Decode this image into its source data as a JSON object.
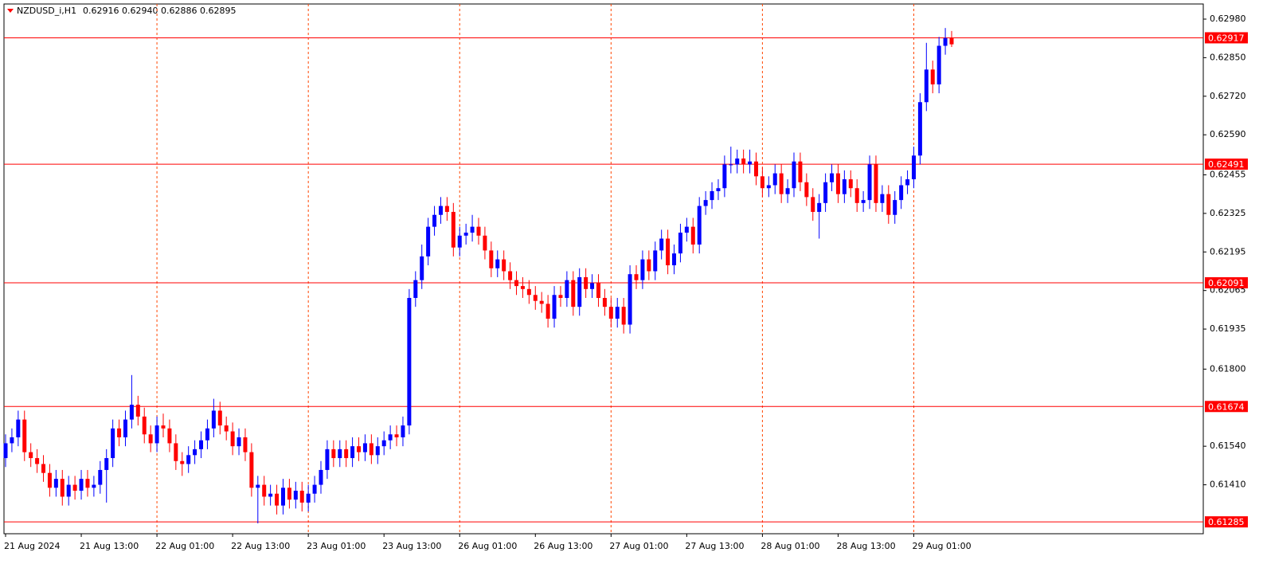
{
  "chart_data": {
    "type": "candlestick",
    "header": {
      "symbol": "NZDUSD_i,H1",
      "quote": "0.62916 0.62940 0.62886 0.62895"
    },
    "up_color": "#0000ff",
    "down_color": "#ff0000",
    "grid_color": "#ff4500",
    "level_color": "#ff0000",
    "grid": true,
    "ylim": [
      0.61245,
      0.63031
    ],
    "yticks": [
      {
        "value": 0.6298,
        "label": "0.62980"
      },
      {
        "value": 0.6285,
        "label": "0.62850"
      },
      {
        "value": 0.6272,
        "label": "0.62720"
      },
      {
        "value": 0.6259,
        "label": "0.62590"
      },
      0.62455,
      0.62325,
      0.62195,
      0.62065,
      0.61935,
      {
        "value": 0.618,
        "label": "0.61800"
      },
      {
        "value": 0.6154,
        "label": "0.61540"
      },
      {
        "value": 0.6141,
        "label": "0.61410"
      }
    ],
    "levels": [
      0.62917,
      0.62491,
      0.62091,
      0.61674,
      0.61285
    ],
    "xticks": [
      {
        "value": 0,
        "label": "21 Aug 2024"
      },
      {
        "value": 12,
        "label": "21 Aug 13:00"
      },
      {
        "value": 24,
        "label": "22 Aug 01:00"
      },
      {
        "value": 36,
        "label": "22 Aug 13:00"
      },
      {
        "value": 48,
        "label": "23 Aug 01:00"
      },
      {
        "value": 60,
        "label": "23 Aug 13:00"
      },
      {
        "value": 72,
        "label": "26 Aug 01:00"
      },
      {
        "value": 84,
        "label": "26 Aug 13:00"
      },
      {
        "value": 96,
        "label": "27 Aug 01:00"
      },
      {
        "value": 108,
        "label": "27 Aug 13:00"
      },
      {
        "value": 120,
        "label": "28 Aug 01:00"
      },
      {
        "value": 132,
        "label": "28 Aug 13:00"
      },
      {
        "value": 144,
        "label": "29 Aug 01:00"
      }
    ],
    "open": [
      0.615,
      0.6155,
      0.6157,
      0.6163,
      0.6152,
      0.615,
      0.6148,
      0.6145,
      0.614,
      0.6143,
      0.6137,
      0.6141,
      0.6139,
      0.6143,
      0.614,
      0.6141,
      0.6146,
      0.615,
      0.616,
      0.6157,
      0.6163,
      0.6168,
      0.6164,
      0.6158,
      0.6155,
      0.6161,
      0.616,
      0.6155,
      0.6149,
      0.6148,
      0.6151,
      0.6153,
      0.6156,
      0.616,
      0.6166,
      0.6161,
      0.6159,
      0.6154,
      0.6157,
      0.6152,
      0.614,
      0.6141,
      0.6137,
      0.6138,
      0.6134,
      0.614,
      0.6136,
      0.6139,
      0.6135,
      0.6138,
      0.6141,
      0.6146,
      0.6153,
      0.615,
      0.6153,
      0.615,
      0.6154,
      0.6152,
      0.6155,
      0.6151,
      0.6154,
      0.6156,
      0.6158,
      0.6157,
      0.6161,
      0.6204,
      0.621,
      0.6218,
      0.6228,
      0.6232,
      0.6235,
      0.6233,
      0.6221,
      0.6225,
      0.6226,
      0.6228,
      0.6225,
      0.622,
      0.6214,
      0.6217,
      0.6213,
      0.621,
      0.6208,
      0.6207,
      0.6205,
      0.6203,
      0.6202,
      0.6197,
      0.6205,
      0.6204,
      0.621,
      0.6201,
      0.6211,
      0.6207,
      0.6209,
      0.6204,
      0.6201,
      0.6197,
      0.6201,
      0.6195,
      0.6212,
      0.621,
      0.6217,
      0.6213,
      0.622,
      0.6224,
      0.6215,
      0.6219,
      0.6226,
      0.6228,
      0.6222,
      0.6235,
      0.6237,
      0.624,
      0.6241,
      0.6249,
      0.6249,
      0.6251,
      0.6249,
      0.625,
      0.6245,
      0.6241,
      0.6242,
      0.6246,
      0.6239,
      0.6241,
      0.625,
      0.6243,
      0.6238,
      0.6233,
      0.6236,
      0.6243,
      0.6246,
      0.6239,
      0.6244,
      0.6241,
      0.6236,
      0.6237,
      0.6249,
      0.6236,
      0.6239,
      0.6232,
      0.6237,
      0.6242,
      0.6244,
      0.6252,
      0.627,
      0.6281,
      0.6276,
      0.6289,
      0.62916
    ],
    "high": [
      0.6158,
      0.616,
      0.6166,
      0.6166,
      0.6155,
      0.6153,
      0.6151,
      0.6148,
      0.6146,
      0.6146,
      0.6144,
      0.6144,
      0.6146,
      0.6146,
      0.6144,
      0.6149,
      0.6153,
      0.6163,
      0.6163,
      0.6166,
      0.6178,
      0.6171,
      0.6167,
      0.6161,
      0.6164,
      0.6165,
      0.6163,
      0.6158,
      0.6152,
      0.6154,
      0.6156,
      0.6159,
      0.6163,
      0.617,
      0.6169,
      0.6164,
      0.6162,
      0.616,
      0.616,
      0.6155,
      0.6144,
      0.6144,
      0.6141,
      0.6141,
      0.6143,
      0.6143,
      0.6142,
      0.6142,
      0.6141,
      0.6144,
      0.6149,
      0.6156,
      0.6156,
      0.6156,
      0.6156,
      0.6157,
      0.6157,
      0.6158,
      0.6158,
      0.6157,
      0.6159,
      0.6161,
      0.6161,
      0.6164,
      0.6207,
      0.6213,
      0.6222,
      0.6231,
      0.6235,
      0.6238,
      0.6238,
      0.6236,
      0.6228,
      0.6229,
      0.6232,
      0.6231,
      0.6228,
      0.6223,
      0.622,
      0.622,
      0.6216,
      0.6213,
      0.6211,
      0.621,
      0.6208,
      0.6206,
      0.6205,
      0.6208,
      0.6208,
      0.6213,
      0.6213,
      0.6214,
      0.6214,
      0.6212,
      0.6212,
      0.6207,
      0.6204,
      0.6204,
      0.6204,
      0.6215,
      0.6215,
      0.622,
      0.622,
      0.6223,
      0.6227,
      0.6227,
      0.6222,
      0.6229,
      0.6231,
      0.6231,
      0.6238,
      0.624,
      0.6243,
      0.6244,
      0.6252,
      0.6255,
      0.6254,
      0.6254,
      0.6254,
      0.6253,
      0.6248,
      0.6245,
      0.6249,
      0.6249,
      0.6244,
      0.6253,
      0.6253,
      0.6246,
      0.6241,
      0.6239,
      0.6246,
      0.6249,
      0.6249,
      0.6247,
      0.6247,
      0.6244,
      0.624,
      0.6252,
      0.6252,
      0.6242,
      0.6242,
      0.624,
      0.6245,
      0.6247,
      0.6255,
      0.6273,
      0.629,
      0.6284,
      0.6292,
      0.6295,
      0.6294
    ],
    "low": [
      0.6147,
      0.6152,
      0.6154,
      0.6149,
      0.6147,
      0.6145,
      0.6142,
      0.6137,
      0.6137,
      0.6134,
      0.6134,
      0.6136,
      0.6136,
      0.6137,
      0.6137,
      0.6138,
      0.6135,
      0.6147,
      0.6154,
      0.6154,
      0.616,
      0.6161,
      0.6155,
      0.6152,
      0.6152,
      0.6157,
      0.6152,
      0.6146,
      0.6144,
      0.6145,
      0.6148,
      0.615,
      0.6153,
      0.6157,
      0.6158,
      0.6156,
      0.6151,
      0.6151,
      0.6149,
      0.6137,
      0.6128,
      0.6134,
      0.6134,
      0.6131,
      0.6131,
      0.6133,
      0.6133,
      0.6132,
      0.6132,
      0.6135,
      0.6138,
      0.6143,
      0.6147,
      0.6147,
      0.6147,
      0.6147,
      0.6149,
      0.6149,
      0.6148,
      0.6148,
      0.6151,
      0.6153,
      0.6154,
      0.6154,
      0.6158,
      0.6201,
      0.6207,
      0.6215,
      0.6225,
      0.6229,
      0.623,
      0.6218,
      0.6218,
      0.6222,
      0.6223,
      0.6222,
      0.6217,
      0.6211,
      0.6211,
      0.621,
      0.6207,
      0.6205,
      0.6204,
      0.6202,
      0.62,
      0.6199,
      0.6194,
      0.6194,
      0.6201,
      0.6201,
      0.6198,
      0.6198,
      0.6204,
      0.6204,
      0.6201,
      0.6198,
      0.6194,
      0.6194,
      0.6192,
      0.6192,
      0.6207,
      0.6207,
      0.621,
      0.621,
      0.6217,
      0.6212,
      0.6212,
      0.6216,
      0.6223,
      0.6219,
      0.6219,
      0.6232,
      0.6234,
      0.6237,
      0.6238,
      0.6246,
      0.6246,
      0.6246,
      0.6246,
      0.6242,
      0.6238,
      0.6238,
      0.6239,
      0.6236,
      0.6236,
      0.6238,
      0.624,
      0.6235,
      0.623,
      0.6224,
      0.6233,
      0.624,
      0.6236,
      0.6236,
      0.6238,
      0.6233,
      0.6233,
      0.6234,
      0.6233,
      0.6233,
      0.6229,
      0.6229,
      0.6234,
      0.6239,
      0.6241,
      0.6249,
      0.6267,
      0.6273,
      0.6273,
      0.6286,
      0.62886
    ],
    "close": [
      0.6155,
      0.6157,
      0.6163,
      0.6152,
      0.615,
      0.6148,
      0.6145,
      0.614,
      0.6143,
      0.6137,
      0.6141,
      0.6139,
      0.6143,
      0.614,
      0.6141,
      0.6146,
      0.615,
      0.616,
      0.6157,
      0.6163,
      0.6168,
      0.6164,
      0.6158,
      0.6155,
      0.6161,
      0.616,
      0.6155,
      0.6149,
      0.6148,
      0.6151,
      0.6153,
      0.6156,
      0.616,
      0.6166,
      0.6161,
      0.6159,
      0.6154,
      0.6157,
      0.6152,
      0.614,
      0.6141,
      0.6137,
      0.6138,
      0.6134,
      0.614,
      0.6136,
      0.6139,
      0.6135,
      0.6138,
      0.6141,
      0.6146,
      0.6153,
      0.615,
      0.6153,
      0.615,
      0.6154,
      0.6152,
      0.6155,
      0.6151,
      0.6154,
      0.6156,
      0.6158,
      0.6157,
      0.6161,
      0.6204,
      0.621,
      0.6218,
      0.6228,
      0.6232,
      0.6235,
      0.6233,
      0.6221,
      0.6225,
      0.6226,
      0.6228,
      0.6225,
      0.622,
      0.6214,
      0.6217,
      0.6213,
      0.621,
      0.6208,
      0.6207,
      0.6205,
      0.6203,
      0.6202,
      0.6197,
      0.6205,
      0.6204,
      0.621,
      0.6201,
      0.6211,
      0.6207,
      0.6209,
      0.6204,
      0.6201,
      0.6197,
      0.6201,
      0.6195,
      0.6212,
      0.621,
      0.6217,
      0.6213,
      0.622,
      0.6224,
      0.6215,
      0.6219,
      0.6226,
      0.6228,
      0.6222,
      0.6235,
      0.6237,
      0.624,
      0.6241,
      0.6249,
      0.6249,
      0.6251,
      0.6249,
      0.625,
      0.6245,
      0.6241,
      0.6242,
      0.6246,
      0.6239,
      0.6241,
      0.625,
      0.6243,
      0.6238,
      0.6233,
      0.6236,
      0.6243,
      0.6246,
      0.6239,
      0.6244,
      0.6241,
      0.6236,
      0.6237,
      0.6249,
      0.6236,
      0.6239,
      0.6232,
      0.6237,
      0.6242,
      0.6244,
      0.6252,
      0.627,
      0.6281,
      0.6276,
      0.6289,
      0.62916,
      0.62895
    ]
  }
}
